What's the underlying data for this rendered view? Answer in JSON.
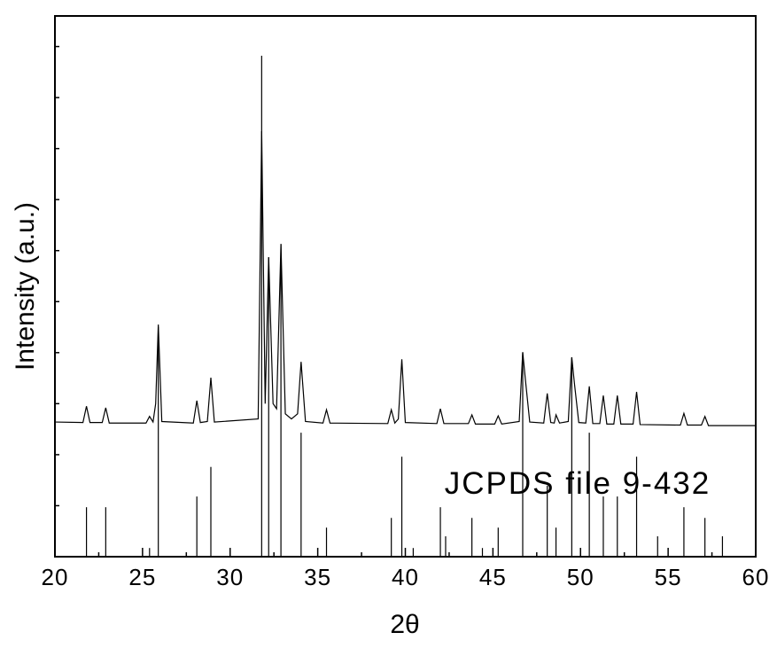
{
  "chart_data": {
    "type": "line",
    "xlabel": "2θ",
    "ylabel": "Intensity (a.u.)",
    "xlim": [
      20,
      60
    ],
    "xticks": [
      20,
      25,
      30,
      35,
      40,
      45,
      50,
      55,
      60
    ],
    "xminor": [
      22.5,
      27.5,
      32.5,
      37.5,
      42.5,
      47.5,
      52.5,
      57.5
    ],
    "ylim": [
      0,
      106
    ],
    "yminor": [
      10,
      20,
      30,
      40,
      50,
      60,
      70,
      80,
      90,
      100
    ],
    "series": [
      {
        "color": "#000000",
        "x": [
          20,
          21.6,
          21.8,
          22.0,
          22.7,
          22.9,
          23.1,
          25.2,
          25.4,
          25.6,
          25.75,
          25.9,
          26.1,
          27.9,
          28.1,
          28.3,
          28.7,
          28.9,
          29.1,
          31.6,
          31.8,
          32.0,
          32.2,
          32.45,
          32.65,
          32.9,
          33.15,
          33.5,
          33.85,
          34.05,
          34.3,
          35.3,
          35.5,
          35.7,
          39.0,
          39.2,
          39.4,
          39.6,
          39.8,
          40.0,
          41.8,
          42.0,
          42.2,
          43.6,
          43.8,
          44.0,
          45.1,
          45.3,
          45.5,
          46.5,
          46.7,
          46.85,
          47.1,
          47.9,
          48.1,
          48.3,
          48.5,
          48.6,
          48.8,
          49.3,
          49.5,
          49.65,
          49.9,
          50.3,
          50.5,
          50.7,
          51.1,
          51.3,
          51.5,
          51.9,
          52.1,
          52.3,
          53.0,
          53.2,
          53.4,
          55.7,
          55.9,
          56.1,
          56.9,
          57.1,
          57.3,
          60
        ],
        "values": [
          26.4,
          26.3,
          29.5,
          26.3,
          26.3,
          29.2,
          26.2,
          26.2,
          27.5,
          26.4,
          30,
          45.5,
          26.5,
          26.2,
          30.6,
          26.3,
          26.5,
          35.1,
          26.4,
          27,
          83.4,
          30,
          58.7,
          30,
          29,
          61.3,
          28,
          27,
          28,
          38.2,
          26.5,
          26.2,
          28.8,
          26.2,
          26.1,
          28.8,
          26.2,
          27,
          38.7,
          26.3,
          26.1,
          29,
          26.1,
          26.1,
          27.8,
          26,
          26,
          27.6,
          26,
          26.5,
          40.1,
          34.8,
          26.4,
          26.2,
          32,
          26.3,
          26.2,
          27.8,
          26.2,
          26.5,
          39.1,
          34,
          26.3,
          26.2,
          33.4,
          26.1,
          26.1,
          31.6,
          26,
          26,
          31.6,
          26,
          26,
          32.3,
          25.9,
          25.8,
          28.1,
          25.8,
          25.8,
          27.5,
          25.7,
          25.7
        ]
      }
    ],
    "reference": {
      "label": "JCPDS file 9-432",
      "color": "#000000",
      "x": [
        21.8,
        22.9,
        25.4,
        25.9,
        28.1,
        28.9,
        31.8,
        32.2,
        32.9,
        34.05,
        35.5,
        39.2,
        39.8,
        40.45,
        42.0,
        42.3,
        43.8,
        44.4,
        45.3,
        46.7,
        48.1,
        48.6,
        49.5,
        50.5,
        51.3,
        52.1,
        53.2,
        54.4,
        55.9,
        57.1,
        58.1
      ],
      "values": [
        9.7,
        9.7,
        1.7,
        45,
        11.8,
        17.6,
        98.2,
        58.7,
        61.3,
        24.3,
        5.7,
        7.6,
        19.6,
        1.7,
        9.7,
        4,
        7.6,
        1.7,
        5.7,
        40,
        13.9,
        5.7,
        39,
        24.3,
        11.8,
        11.8,
        19.6,
        4,
        9.7,
        7.6,
        4
      ]
    }
  }
}
